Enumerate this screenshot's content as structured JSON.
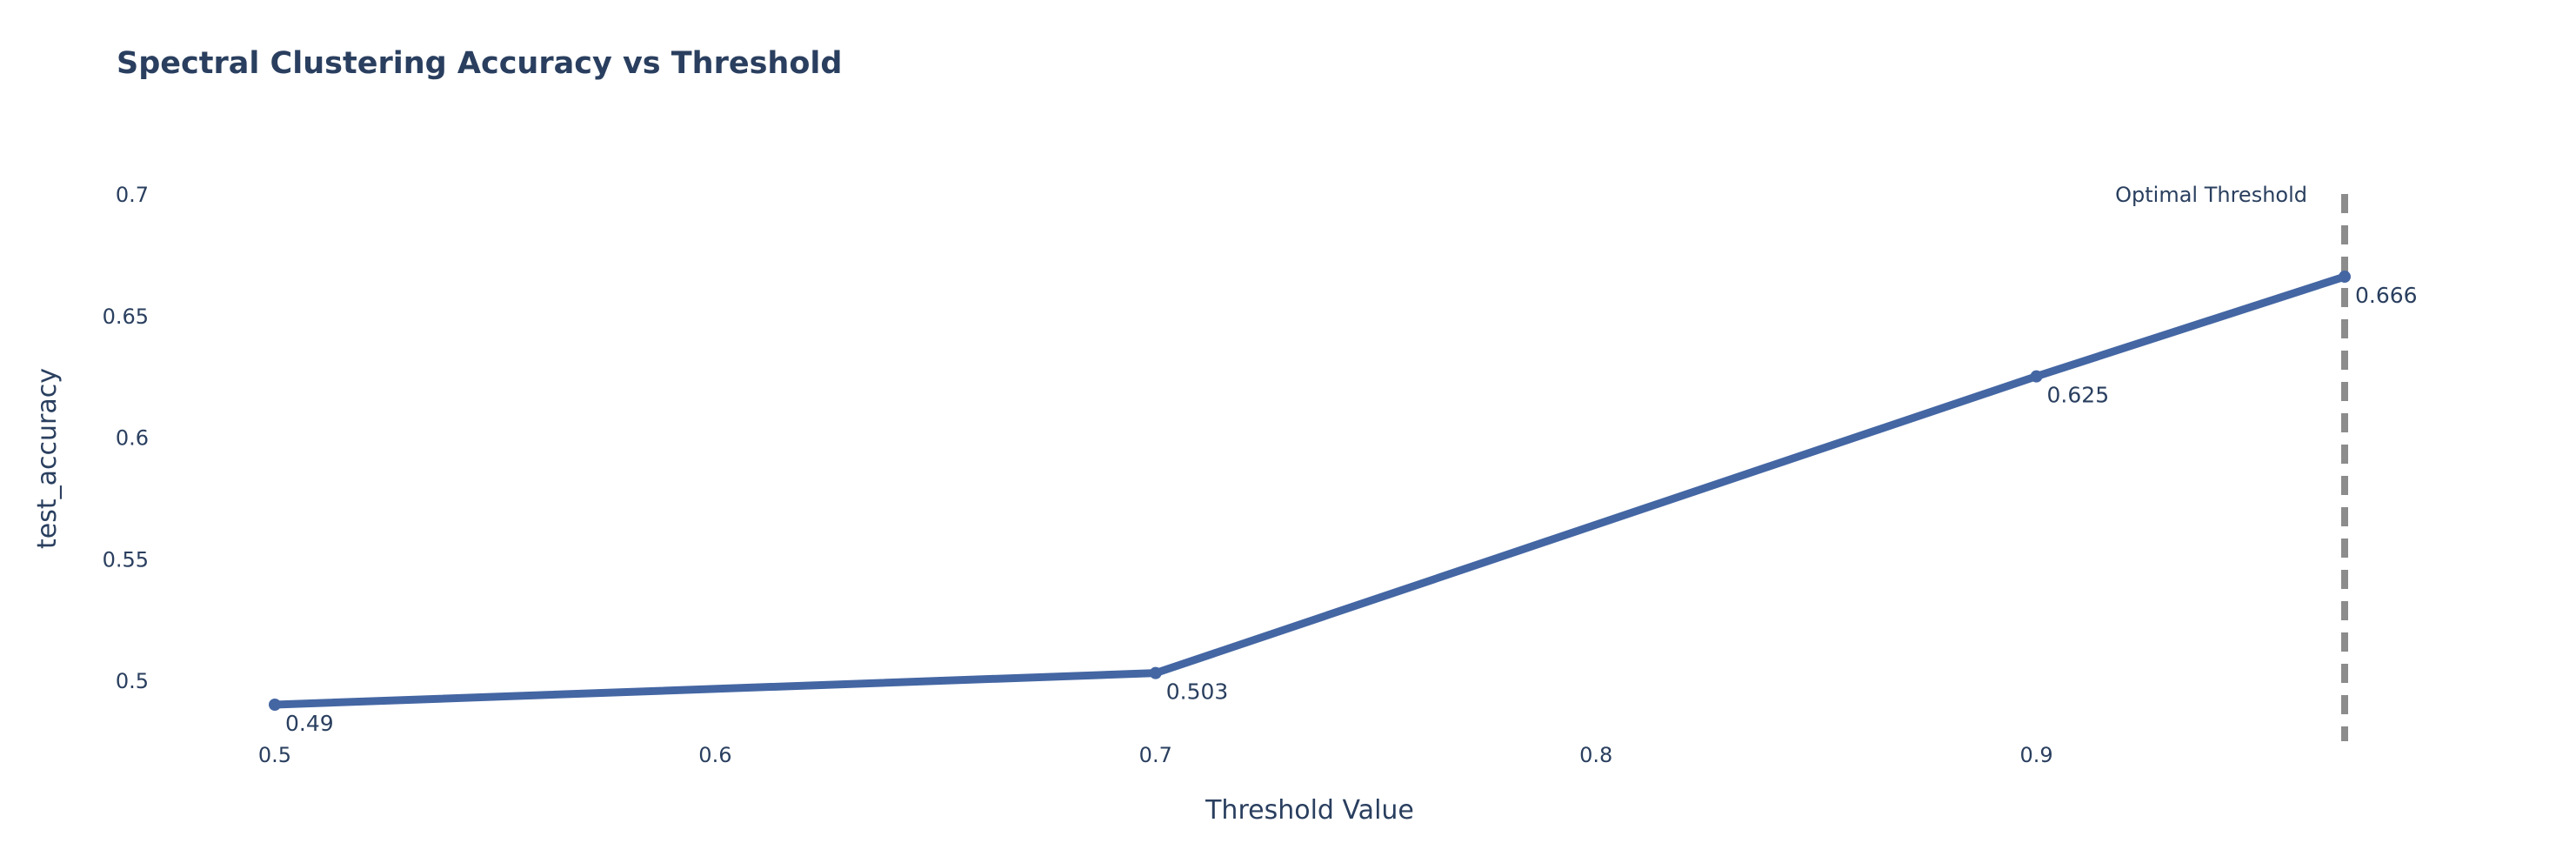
{
  "chart_data": {
    "type": "line",
    "title": "Spectral Clustering Accuracy vs Threshold",
    "xlabel": "Threshold Value",
    "ylabel": "test_accuracy",
    "x": [
      0.5,
      0.7,
      0.9,
      0.97
    ],
    "y": [
      0.49,
      0.503,
      0.625,
      0.666
    ],
    "data_labels": [
      "0.49",
      "0.503",
      "0.625",
      "0.666"
    ],
    "x_ticks": [
      0.5,
      0.6,
      0.7,
      0.8,
      0.9
    ],
    "x_tick_labels": [
      "0.5",
      "0.6",
      "0.7",
      "0.8",
      "0.9"
    ],
    "y_ticks": [
      0.5,
      0.55,
      0.6,
      0.65,
      0.7
    ],
    "y_tick_labels": [
      "0.5",
      "0.55",
      "0.6",
      "0.65",
      "0.7"
    ],
    "xlim": [
      0.5,
      0.97
    ],
    "ylim": [
      0.49,
      0.7
    ],
    "grid": false,
    "legend": "none",
    "line_color": "#4466a3",
    "reference_line": {
      "x": 0.97,
      "label": "Optimal Threshold",
      "color": "#8c8c8c",
      "style": "dashed"
    }
  }
}
